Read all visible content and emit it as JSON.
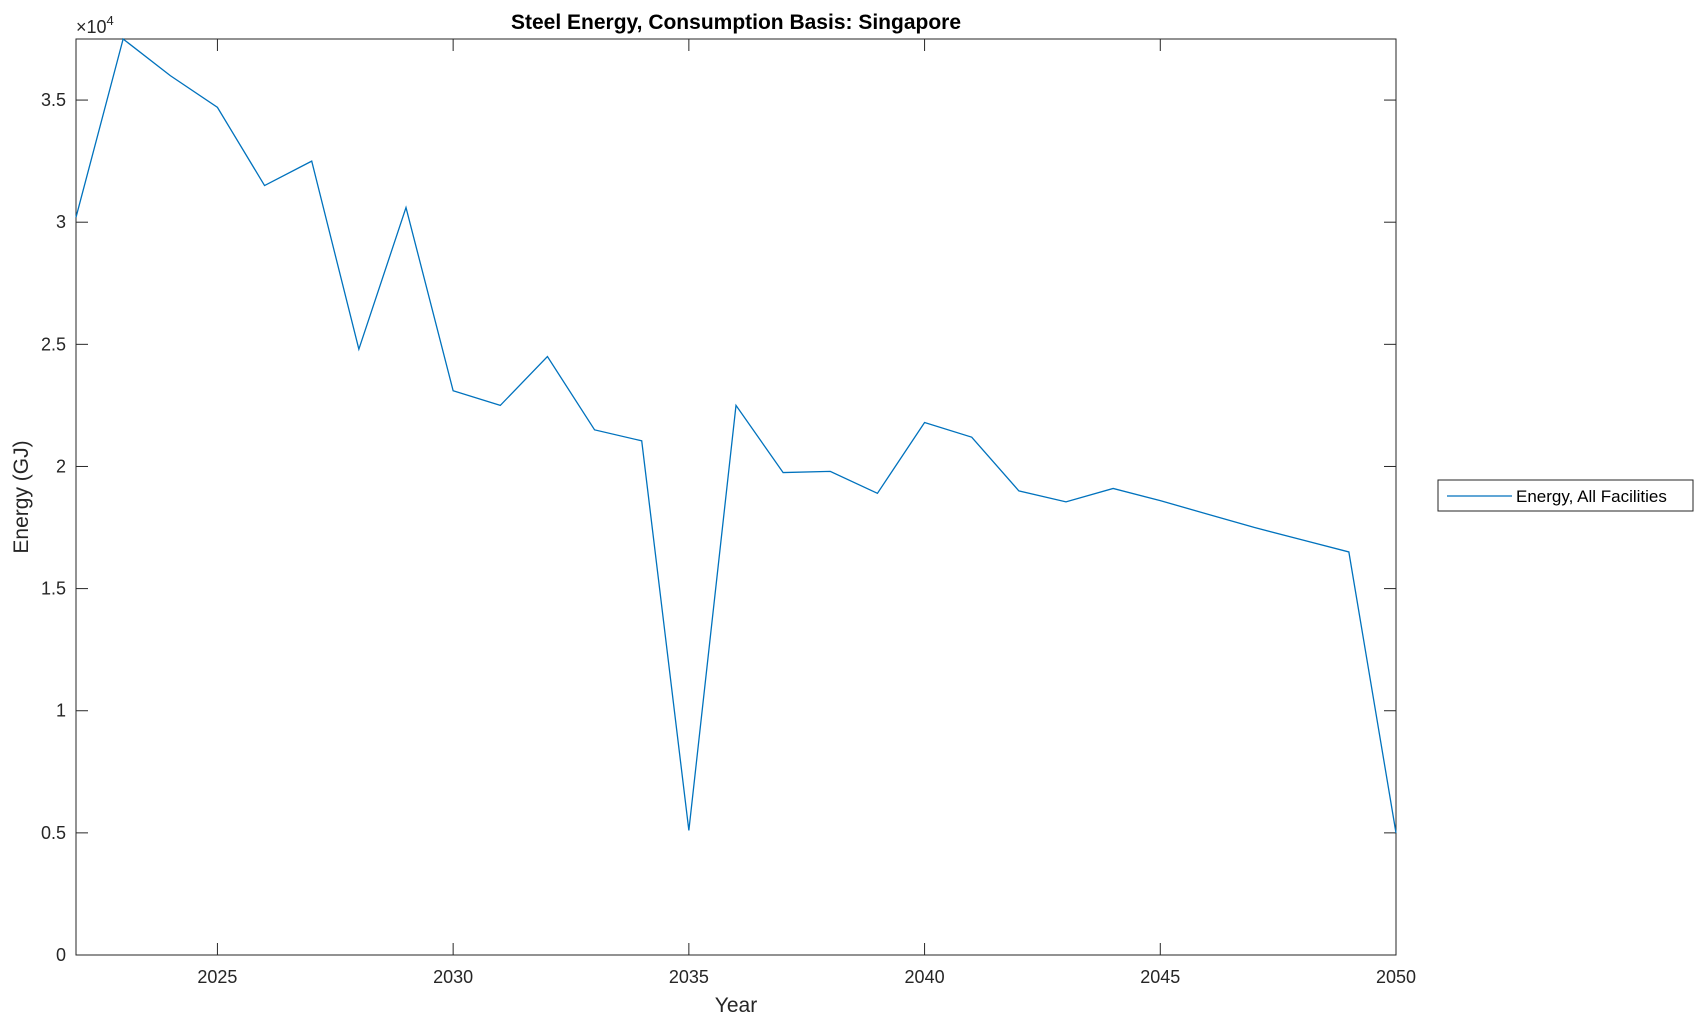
{
  "chart_data": {
    "type": "line",
    "title": "Steel Energy, Consumption Basis: Singapore",
    "xlabel": "Year",
    "ylabel": "Energy (GJ)",
    "y_exponent_label": {
      "base": "×10",
      "power": "4"
    },
    "xlim": [
      2022,
      2050
    ],
    "ylim": [
      0,
      37500
    ],
    "x_ticks": [
      2025,
      2030,
      2035,
      2040,
      2045,
      2050
    ],
    "x_tick_labels": [
      "2025",
      "2030",
      "2035",
      "2040",
      "2045",
      "2050"
    ],
    "y_ticks": [
      0,
      5000,
      10000,
      15000,
      20000,
      25000,
      30000,
      35000
    ],
    "y_tick_labels": [
      "0",
      "0.5",
      "1",
      "1.5",
      "2",
      "2.5",
      "3",
      "3.5"
    ],
    "grid": false,
    "legend": {
      "placement": "outside-right"
    },
    "series": [
      {
        "name": "Energy, All Facilities",
        "color": "#0072bd",
        "x": [
          2022,
          2023,
          2024,
          2025,
          2026,
          2027,
          2028,
          2029,
          2030,
          2031,
          2032,
          2033,
          2034,
          2035,
          2036,
          2037,
          2038,
          2039,
          2040,
          2041,
          2042,
          2043,
          2044,
          2045,
          2046,
          2047,
          2048,
          2049,
          2050
        ],
        "y": [
          30200,
          37500,
          36000,
          34700,
          31500,
          32500,
          24800,
          30600,
          23100,
          22500,
          24500,
          21500,
          21050,
          5100,
          22500,
          19750,
          19800,
          18900,
          21800,
          21200,
          19000,
          18550,
          19100,
          18600,
          18050,
          17500,
          17000,
          16500,
          5000
        ]
      }
    ]
  }
}
